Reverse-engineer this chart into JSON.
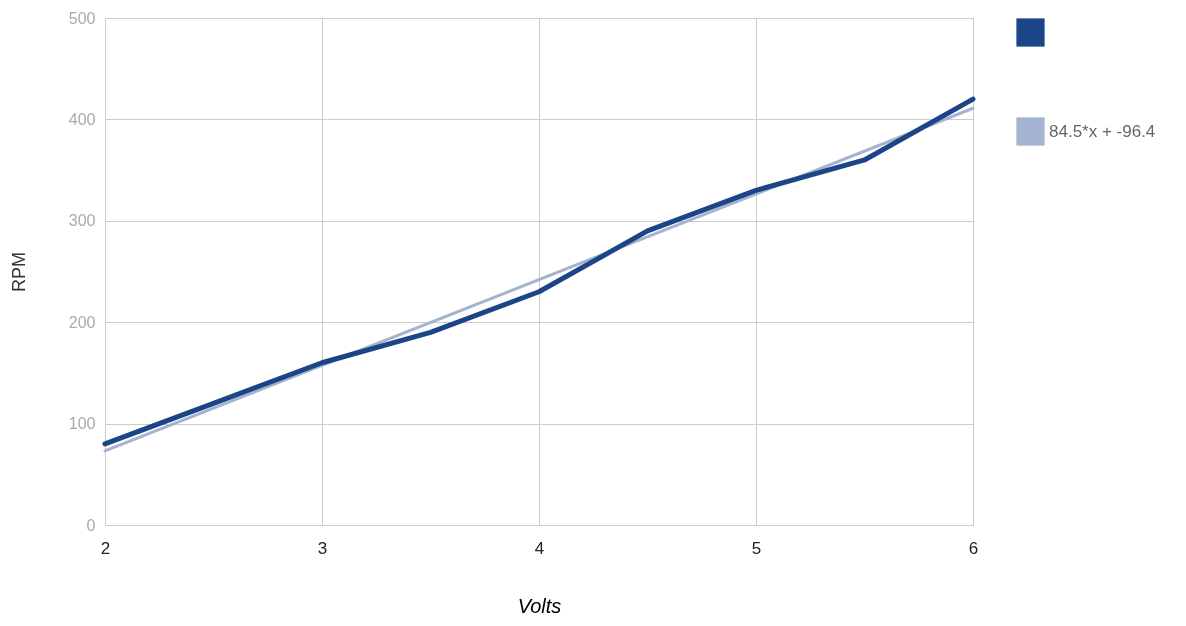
{
  "chart_data": {
    "type": "line",
    "xlabel": "Volts",
    "ylabel": "RPM",
    "xlim": [
      2,
      6
    ],
    "xticks": [
      2,
      3,
      4,
      5,
      6
    ],
    "ylim": [
      0,
      500
    ],
    "yticks": [
      0,
      100,
      200,
      300,
      400,
      500
    ],
    "grid": true,
    "legend": "top right",
    "line_style": "solid",
    "marker": "none",
    "series": [
      {
        "color": "#1c4587",
        "x": [
          2,
          2.5,
          3,
          3.5,
          4,
          4.5,
          5,
          5.5,
          6
        ],
        "values": [
          80,
          120,
          160,
          190,
          230,
          290,
          330,
          360,
          420
        ]
      },
      {
        "name": "84.5*x + -96.4",
        "type": "line",
        "color": "#a4b4d0",
        "x": [
          2,
          6
        ],
        "values": [
          73,
          411
        ]
      }
    ]
  }
}
